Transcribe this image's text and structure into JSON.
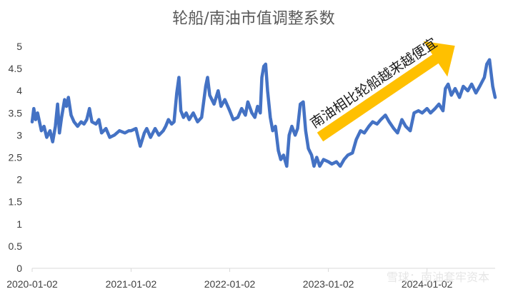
{
  "chart_data": {
    "type": "line",
    "title": "轮船/南油市值调整系数",
    "xlabel": "",
    "ylabel": "",
    "ylim": [
      0,
      5
    ],
    "y_ticks": [
      "0",
      "0.5",
      "1",
      "1.5",
      "2",
      "2.5",
      "3",
      "3.5",
      "4",
      "4.5",
      "5"
    ],
    "x_ticks": [
      "2020-01-02",
      "2021-01-02",
      "2022-01-02",
      "2023-01-02",
      "2024-01-02"
    ],
    "grid": false,
    "line_color": "#4472C4",
    "annotation": {
      "text": "南油相比轮船越来越便宜",
      "arrow_color": "#FFC000"
    },
    "watermark": "雪球：南油套牢资本",
    "series": [
      {
        "name": "",
        "points": [
          [
            "2020-01-02",
            3.3
          ],
          [
            "2020-01-08",
            3.6
          ],
          [
            "2020-01-15",
            3.35
          ],
          [
            "2020-01-22",
            3.5
          ],
          [
            "2020-02-05",
            3.1
          ],
          [
            "2020-02-15",
            3.2
          ],
          [
            "2020-02-25",
            2.95
          ],
          [
            "2020-03-08",
            3.1
          ],
          [
            "2020-03-18",
            2.85
          ],
          [
            "2020-03-28",
            3.2
          ],
          [
            "2020-04-05",
            3.7
          ],
          [
            "2020-04-12",
            3.05
          ],
          [
            "2020-04-20",
            3.4
          ],
          [
            "2020-05-01",
            3.8
          ],
          [
            "2020-05-08",
            3.65
          ],
          [
            "2020-05-15",
            3.85
          ],
          [
            "2020-05-25",
            3.45
          ],
          [
            "2020-06-05",
            3.3
          ],
          [
            "2020-06-18",
            3.2
          ],
          [
            "2020-07-01",
            3.3
          ],
          [
            "2020-07-12",
            3.25
          ],
          [
            "2020-07-22",
            3.35
          ],
          [
            "2020-08-01",
            3.6
          ],
          [
            "2020-08-10",
            3.3
          ],
          [
            "2020-08-25",
            3.25
          ],
          [
            "2020-09-05",
            3.35
          ],
          [
            "2020-09-15",
            3.05
          ],
          [
            "2020-10-01",
            3.15
          ],
          [
            "2020-10-15",
            2.95
          ],
          [
            "2020-11-01",
            3.0
          ],
          [
            "2020-11-20",
            3.1
          ],
          [
            "2020-12-10",
            3.05
          ],
          [
            "2020-12-25",
            3.1
          ],
          [
            "2021-01-02",
            3.1
          ],
          [
            "2021-01-20",
            3.15
          ],
          [
            "2021-02-05",
            2.75
          ],
          [
            "2021-02-20",
            3.05
          ],
          [
            "2021-03-01",
            3.15
          ],
          [
            "2021-03-15",
            2.95
          ],
          [
            "2021-04-01",
            3.15
          ],
          [
            "2021-04-15",
            3.0
          ],
          [
            "2021-05-01",
            3.1
          ],
          [
            "2021-05-10",
            3.2
          ],
          [
            "2021-05-20",
            3.35
          ],
          [
            "2021-06-01",
            3.25
          ],
          [
            "2021-06-10",
            3.3
          ],
          [
            "2021-06-20",
            3.95
          ],
          [
            "2021-06-28",
            4.3
          ],
          [
            "2021-07-05",
            3.55
          ],
          [
            "2021-07-15",
            3.4
          ],
          [
            "2021-07-25",
            3.5
          ],
          [
            "2021-08-05",
            3.35
          ],
          [
            "2021-08-20",
            3.5
          ],
          [
            "2021-09-05",
            3.3
          ],
          [
            "2021-09-20",
            3.4
          ],
          [
            "2021-10-05",
            4.1
          ],
          [
            "2021-10-12",
            4.3
          ],
          [
            "2021-10-20",
            3.9
          ],
          [
            "2021-11-05",
            3.7
          ],
          [
            "2021-11-20",
            4.0
          ],
          [
            "2021-12-01",
            3.65
          ],
          [
            "2021-12-15",
            3.8
          ],
          [
            "2022-01-02",
            3.55
          ],
          [
            "2022-01-15",
            3.35
          ],
          [
            "2022-02-01",
            3.4
          ],
          [
            "2022-02-15",
            3.6
          ],
          [
            "2022-03-01",
            3.45
          ],
          [
            "2022-03-10",
            3.75
          ],
          [
            "2022-03-25",
            3.5
          ],
          [
            "2022-04-05",
            3.4
          ],
          [
            "2022-04-15",
            3.65
          ],
          [
            "2022-04-25",
            3.5
          ],
          [
            "2022-05-01",
            4.3
          ],
          [
            "2022-05-08",
            4.55
          ],
          [
            "2022-05-15",
            4.6
          ],
          [
            "2022-05-22",
            4.0
          ],
          [
            "2022-06-01",
            3.4
          ],
          [
            "2022-06-10",
            3.1
          ],
          [
            "2022-06-20",
            3.2
          ],
          [
            "2022-07-01",
            2.65
          ],
          [
            "2022-07-10",
            2.45
          ],
          [
            "2022-07-20",
            2.55
          ],
          [
            "2022-08-01",
            2.3
          ],
          [
            "2022-08-10",
            3.0
          ],
          [
            "2022-08-20",
            3.2
          ],
          [
            "2022-09-01",
            3.0
          ],
          [
            "2022-09-10",
            3.15
          ],
          [
            "2022-09-20",
            3.7
          ],
          [
            "2022-10-01",
            3.75
          ],
          [
            "2022-10-10",
            3.1
          ],
          [
            "2022-10-20",
            2.7
          ],
          [
            "2022-11-01",
            2.55
          ],
          [
            "2022-11-10",
            2.3
          ],
          [
            "2022-11-20",
            2.5
          ],
          [
            "2022-12-01",
            2.3
          ],
          [
            "2022-12-15",
            2.45
          ],
          [
            "2023-01-02",
            2.4
          ],
          [
            "2023-01-15",
            2.35
          ],
          [
            "2023-02-01",
            2.4
          ],
          [
            "2023-02-15",
            2.3
          ],
          [
            "2023-03-01",
            2.45
          ],
          [
            "2023-03-15",
            2.55
          ],
          [
            "2023-04-01",
            2.6
          ],
          [
            "2023-04-15",
            2.9
          ],
          [
            "2023-05-01",
            3.1
          ],
          [
            "2023-05-15",
            3.05
          ],
          [
            "2023-06-01",
            3.2
          ],
          [
            "2023-06-15",
            3.3
          ],
          [
            "2023-07-01",
            3.25
          ],
          [
            "2023-07-15",
            3.35
          ],
          [
            "2023-08-01",
            3.45
          ],
          [
            "2023-08-15",
            3.3
          ],
          [
            "2023-09-01",
            3.15
          ],
          [
            "2023-09-15",
            3.05
          ],
          [
            "2023-10-01",
            3.35
          ],
          [
            "2023-10-15",
            3.2
          ],
          [
            "2023-11-01",
            3.1
          ],
          [
            "2023-11-15",
            3.5
          ],
          [
            "2023-12-01",
            3.55
          ],
          [
            "2023-12-15",
            3.5
          ],
          [
            "2024-01-02",
            3.6
          ],
          [
            "2024-01-15",
            3.5
          ],
          [
            "2024-02-01",
            3.6
          ],
          [
            "2024-02-15",
            3.7
          ],
          [
            "2024-03-01",
            3.55
          ],
          [
            "2024-03-10",
            4.05
          ],
          [
            "2024-03-20",
            4.15
          ],
          [
            "2024-04-01",
            3.9
          ],
          [
            "2024-04-15",
            4.05
          ],
          [
            "2024-05-01",
            3.85
          ],
          [
            "2024-05-15",
            4.1
          ],
          [
            "2024-06-01",
            4.0
          ],
          [
            "2024-06-15",
            4.15
          ],
          [
            "2024-07-01",
            3.95
          ],
          [
            "2024-07-15",
            4.1
          ],
          [
            "2024-08-01",
            4.3
          ],
          [
            "2024-08-10",
            4.6
          ],
          [
            "2024-08-20",
            4.7
          ],
          [
            "2024-09-01",
            4.1
          ],
          [
            "2024-09-10",
            3.85
          ]
        ]
      }
    ]
  }
}
